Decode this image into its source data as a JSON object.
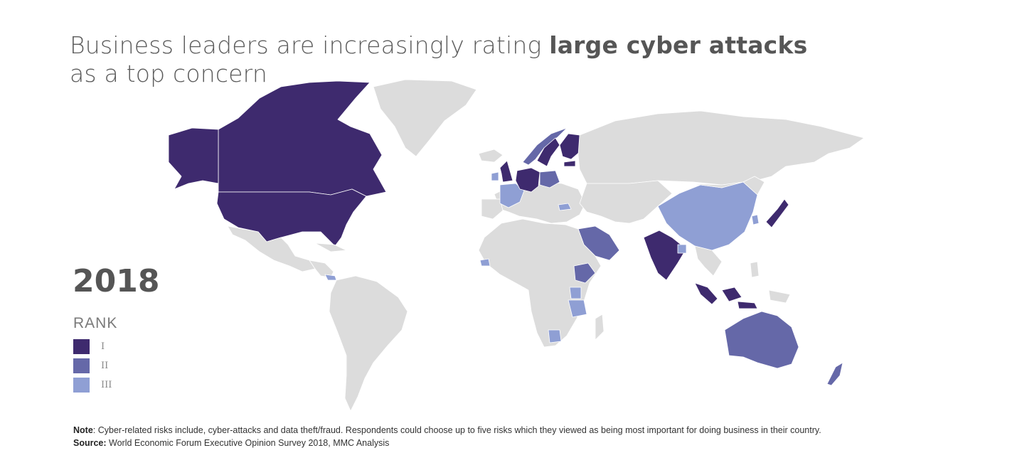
{
  "title": {
    "part1": "Business leaders are increasingly rating ",
    "bold": "large cyber attacks",
    "part2": "as a top concern"
  },
  "year": "2018",
  "legend": {
    "heading": "RANK",
    "items": [
      {
        "label": "I",
        "color": "#3e2a6e"
      },
      {
        "label": "II",
        "color": "#6568a8"
      },
      {
        "label": "III",
        "color": "#8f9fd4"
      }
    ]
  },
  "colors": {
    "rank1": "#3e2a6e",
    "rank2": "#6568a8",
    "rank3": "#8f9fd4",
    "land": "#dcdcdc",
    "border": "#ffffff"
  },
  "countries": {
    "rank1": [
      "Canada",
      "United States",
      "Alaska",
      "United Kingdom",
      "Germany",
      "Netherlands",
      "Switzerland",
      "Sweden",
      "Finland",
      "Estonia",
      "India",
      "Japan",
      "Malaysia",
      "Indonesia"
    ],
    "rank2": [
      "Norway",
      "Poland",
      "Saudi Arabia",
      "Ethiopia",
      "Australia",
      "New Zealand"
    ],
    "rank3": [
      "Ireland",
      "France",
      "Bulgaria",
      "China",
      "South Korea",
      "Senegal",
      "Panama",
      "Uganda",
      "Tanzania",
      "Botswana",
      "Bangladesh"
    ]
  },
  "note": {
    "label": "Note",
    "text": ": Cyber-related risks include, cyber-attacks and data theft/fraud. Respondents could choose up to five risks which they viewed as being most important for doing business in their country."
  },
  "source": {
    "label": "Source:",
    "text": " World Economic Forum Executive Opinion Survey 2018, MMC Analysis"
  }
}
